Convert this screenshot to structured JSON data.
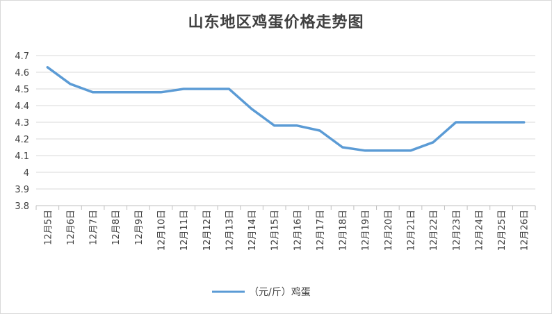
{
  "chart_data": {
    "type": "line",
    "title": "山东地区鸡蛋价格走势图",
    "xlabel": "",
    "ylabel": "",
    "categories": [
      "12月5日",
      "12月6日",
      "12月7日",
      "12月8日",
      "12月9日",
      "12月10日",
      "12月11日",
      "12月12日",
      "12月13日",
      "12月14日",
      "12月15日",
      "12月16日",
      "12月17日",
      "12月18日",
      "12月19日",
      "12月20日",
      "12月21日",
      "12月22日",
      "12月23日",
      "12月24日",
      "12月25日",
      "12月26日"
    ],
    "series": [
      {
        "name": "（元/斤）鸡蛋",
        "color": "#5b9bd5",
        "values": [
          4.63,
          4.53,
          4.48,
          4.48,
          4.48,
          4.48,
          4.5,
          4.5,
          4.5,
          4.38,
          4.28,
          4.28,
          4.25,
          4.15,
          4.13,
          4.13,
          4.13,
          4.18,
          4.3,
          4.3,
          4.3,
          4.3
        ]
      }
    ],
    "ylim": [
      3.8,
      4.7
    ],
    "yticks": [
      "3.8",
      "3.9",
      "4",
      "4.1",
      "4.2",
      "4.3",
      "4.4",
      "4.5",
      "4.6",
      "4.7"
    ],
    "grid": true,
    "legend": "bottom"
  }
}
